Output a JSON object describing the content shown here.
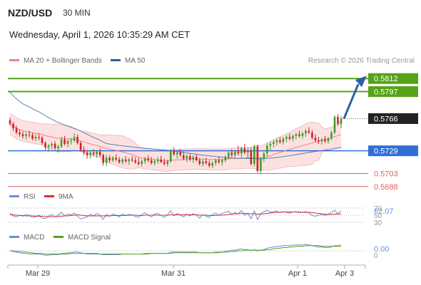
{
  "header": {
    "pair": "NZD/USD",
    "timeframe": "30 MIN",
    "datetime": "Wednesday, April 1, 2026 10:35:29 AM CET"
  },
  "legend": {
    "ma20_bb": "MA 20 + Bollinger Bands",
    "ma50": "MA 50",
    "credit": "Research © 2026 Trading Central",
    "rsi": "RSI",
    "rsi_ma": "9MA",
    "macd": "MACD",
    "macd_signal": "MACD Signal"
  },
  "colors": {
    "resistance": "#55a318",
    "pivot": "#2f6fd6",
    "support": "#e06060",
    "bullish_candle": "#3aa02a",
    "bearish_candle": "#d0202a",
    "ma20": "#f08080",
    "ma50": "#5b7fb3",
    "bollinger_fill": "#fbdcdc",
    "rsi": "#6a8fd8",
    "rsi_ma": "#d83030",
    "macd": "#6a8fd8",
    "macd_signal": "#55a318",
    "last_price_tag": "#222222",
    "forecast_arrow": "#2f5fa8"
  },
  "chart_data": [
    {
      "type": "candlestick",
      "title": "NZD/USD 30 MIN",
      "ylim": [
        0.5678,
        0.5822
      ],
      "x_ticks": [
        "Mar 29",
        "Mar 31",
        "Apr 1",
        "Apr 3"
      ],
      "last_price": 0.5766,
      "levels": [
        {
          "label": "0.5812",
          "value": 0.5812,
          "kind": "resistance"
        },
        {
          "label": "0.5797",
          "value": 0.5797,
          "kind": "resistance"
        },
        {
          "label": "0.5729",
          "value": 0.5729,
          "kind": "pivot"
        },
        {
          "label": "0.5703",
          "value": 0.5703,
          "kind": "support"
        },
        {
          "label": "0.5688",
          "value": 0.5688,
          "kind": "support"
        }
      ],
      "forecast": {
        "from": 0.5766,
        "to": 0.5812,
        "direction": "up"
      },
      "ohlc_approx": [
        [
          0.5764,
          0.5767,
          0.5758,
          0.576
        ],
        [
          0.576,
          0.5762,
          0.5752,
          0.5755
        ],
        [
          0.5755,
          0.5758,
          0.5748,
          0.575
        ],
        [
          0.575,
          0.5753,
          0.5745,
          0.5748
        ],
        [
          0.5748,
          0.5751,
          0.5743,
          0.5746
        ],
        [
          0.5746,
          0.575,
          0.5742,
          0.5748
        ],
        [
          0.5748,
          0.5752,
          0.5744,
          0.5747
        ],
        [
          0.5747,
          0.575,
          0.5741,
          0.5743
        ],
        [
          0.5743,
          0.5748,
          0.574,
          0.5745
        ],
        [
          0.5745,
          0.5749,
          0.5741,
          0.5744
        ],
        [
          0.5744,
          0.5746,
          0.5736,
          0.5738
        ],
        [
          0.5738,
          0.574,
          0.573,
          0.5733
        ],
        [
          0.5733,
          0.5737,
          0.5728,
          0.5735
        ],
        [
          0.5735,
          0.5739,
          0.5731,
          0.5737
        ],
        [
          0.5737,
          0.574,
          0.573,
          0.5732
        ],
        [
          0.5732,
          0.5736,
          0.5727,
          0.5734
        ],
        [
          0.5734,
          0.5745,
          0.5732,
          0.5742
        ],
        [
          0.5742,
          0.5746,
          0.5735,
          0.5737
        ],
        [
          0.5737,
          0.5742,
          0.5733,
          0.574
        ],
        [
          0.574,
          0.5744,
          0.5736,
          0.5741
        ],
        [
          0.5741,
          0.5749,
          0.5739,
          0.5745
        ],
        [
          0.5745,
          0.5748,
          0.5736,
          0.5738
        ],
        [
          0.5738,
          0.574,
          0.5728,
          0.573
        ],
        [
          0.573,
          0.5734,
          0.5724,
          0.5727
        ],
        [
          0.5727,
          0.573,
          0.572,
          0.5724
        ],
        [
          0.5724,
          0.5729,
          0.572,
          0.5727
        ],
        [
          0.5727,
          0.5731,
          0.5723,
          0.5725
        ],
        [
          0.5725,
          0.573,
          0.5721,
          0.5728
        ],
        [
          0.5728,
          0.5732,
          0.5722,
          0.5724
        ],
        [
          0.5724,
          0.5726,
          0.5712,
          0.5715
        ],
        [
          0.5715,
          0.5724,
          0.5711,
          0.5721
        ],
        [
          0.5721,
          0.5724,
          0.5715,
          0.5718
        ],
        [
          0.5718,
          0.5723,
          0.5716,
          0.5721
        ],
        [
          0.5721,
          0.5725,
          0.5717,
          0.5719
        ],
        [
          0.5719,
          0.5722,
          0.5714,
          0.5716
        ],
        [
          0.5716,
          0.5721,
          0.5713,
          0.5719
        ],
        [
          0.5719,
          0.5723,
          0.5715,
          0.5717
        ],
        [
          0.5717,
          0.5721,
          0.5713,
          0.5719
        ],
        [
          0.5719,
          0.5723,
          0.5716,
          0.5718
        ],
        [
          0.5718,
          0.5722,
          0.5714,
          0.5716
        ],
        [
          0.5716,
          0.5721,
          0.5712,
          0.5714
        ],
        [
          0.5714,
          0.5719,
          0.5711,
          0.5717
        ],
        [
          0.5717,
          0.5722,
          0.5714,
          0.572
        ],
        [
          0.572,
          0.5724,
          0.5716,
          0.5718
        ],
        [
          0.5718,
          0.5722,
          0.5713,
          0.5715
        ],
        [
          0.5715,
          0.5719,
          0.5712,
          0.5717
        ],
        [
          0.5717,
          0.5722,
          0.5714,
          0.5719
        ],
        [
          0.5719,
          0.5723,
          0.5715,
          0.5716
        ],
        [
          0.5716,
          0.572,
          0.5712,
          0.5714
        ],
        [
          0.5714,
          0.5719,
          0.5711,
          0.5717
        ],
        [
          0.5717,
          0.5731,
          0.5715,
          0.5729
        ],
        [
          0.5729,
          0.5733,
          0.5723,
          0.5725
        ],
        [
          0.5725,
          0.5729,
          0.572,
          0.5727
        ],
        [
          0.5727,
          0.5731,
          0.5722,
          0.5724
        ],
        [
          0.5724,
          0.5728,
          0.5718,
          0.572
        ],
        [
          0.572,
          0.5725,
          0.5716,
          0.5723
        ],
        [
          0.5723,
          0.5726,
          0.5717,
          0.5719
        ],
        [
          0.5719,
          0.5724,
          0.5715,
          0.5722
        ],
        [
          0.5722,
          0.5725,
          0.5717,
          0.5718
        ],
        [
          0.5718,
          0.5721,
          0.5712,
          0.5714
        ],
        [
          0.5714,
          0.5719,
          0.5711,
          0.5717
        ],
        [
          0.5717,
          0.5721,
          0.5713,
          0.5715
        ],
        [
          0.5715,
          0.5718,
          0.571,
          0.5712
        ],
        [
          0.5712,
          0.5717,
          0.5709,
          0.5715
        ],
        [
          0.5715,
          0.572,
          0.5712,
          0.5718
        ],
        [
          0.5718,
          0.5722,
          0.5714,
          0.5716
        ],
        [
          0.5716,
          0.572,
          0.5712,
          0.5718
        ],
        [
          0.5718,
          0.5724,
          0.5716,
          0.5722
        ],
        [
          0.5722,
          0.5729,
          0.5719,
          0.5727
        ],
        [
          0.5727,
          0.5731,
          0.5722,
          0.5724
        ],
        [
          0.5724,
          0.573,
          0.5721,
          0.5728
        ],
        [
          0.5728,
          0.5735,
          0.5724,
          0.5726
        ],
        [
          0.5726,
          0.5734,
          0.5721,
          0.5732
        ],
        [
          0.5732,
          0.5737,
          0.5725,
          0.5727
        ],
        [
          0.5727,
          0.5733,
          0.572,
          0.5729
        ],
        [
          0.5729,
          0.5733,
          0.5712,
          0.5714
        ],
        [
          0.5714,
          0.5736,
          0.5711,
          0.5734
        ],
        [
          0.5734,
          0.5736,
          0.5704,
          0.5706
        ],
        [
          0.5706,
          0.5722,
          0.5703,
          0.572
        ],
        [
          0.572,
          0.5728,
          0.5716,
          0.5726
        ],
        [
          0.5726,
          0.5738,
          0.5722,
          0.5735
        ],
        [
          0.5735,
          0.574,
          0.5729,
          0.5737
        ],
        [
          0.5737,
          0.5742,
          0.5733,
          0.5739
        ],
        [
          0.5739,
          0.5743,
          0.5735,
          0.5741
        ],
        [
          0.5741,
          0.5745,
          0.5737,
          0.5739
        ],
        [
          0.5739,
          0.5745,
          0.5736,
          0.5743
        ],
        [
          0.5743,
          0.5747,
          0.5739,
          0.5745
        ],
        [
          0.5745,
          0.5749,
          0.5741,
          0.5743
        ],
        [
          0.5743,
          0.5748,
          0.574,
          0.5746
        ],
        [
          0.5746,
          0.575,
          0.5742,
          0.5748
        ],
        [
          0.5748,
          0.5752,
          0.5744,
          0.5746
        ],
        [
          0.5746,
          0.5751,
          0.5743,
          0.5749
        ],
        [
          0.5749,
          0.5754,
          0.5745,
          0.5752
        ],
        [
          0.5752,
          0.5756,
          0.5748,
          0.575
        ],
        [
          0.575,
          0.5753,
          0.5742,
          0.5744
        ],
        [
          0.5744,
          0.5748,
          0.5739,
          0.5741
        ],
        [
          0.5741,
          0.5745,
          0.5737,
          0.574
        ],
        [
          0.574,
          0.5744,
          0.5736,
          0.5742
        ],
        [
          0.5742,
          0.5746,
          0.5738,
          0.574
        ],
        [
          0.574,
          0.5745,
          0.5737,
          0.5743
        ],
        [
          0.5743,
          0.5752,
          0.5741,
          0.575
        ],
        [
          0.575,
          0.577,
          0.5748,
          0.5768
        ],
        [
          0.5768,
          0.5771,
          0.5758,
          0.576
        ],
        [
          0.576,
          0.5769,
          0.5755,
          0.5766
        ]
      ]
    },
    {
      "type": "line",
      "title": "RSI",
      "ylim": [
        30,
        70
      ],
      "tick_labels": [
        "70",
        "50",
        "30"
      ],
      "value_label": "62.07",
      "series": [
        {
          "name": "RSI",
          "values": [
            55,
            48,
            45,
            50,
            47,
            52,
            49,
            44,
            46,
            50,
            42,
            40,
            47,
            52,
            45,
            50,
            58,
            48,
            53,
            51,
            56,
            47,
            40,
            42,
            46,
            52,
            48,
            55,
            50,
            38,
            52,
            47,
            53,
            50,
            45,
            54,
            49,
            52,
            51,
            46,
            44,
            52,
            57,
            50,
            45,
            53,
            55,
            49,
            44,
            51,
            62,
            48,
            55,
            50,
            45,
            53,
            48,
            54,
            50,
            42,
            52,
            47,
            44,
            52,
            56,
            50,
            55,
            58,
            61,
            52,
            57,
            54,
            63,
            50,
            55,
            40,
            62,
            38,
            55,
            60,
            64,
            58,
            60,
            61,
            57,
            60,
            58,
            56,
            59,
            60,
            57,
            58,
            60,
            56,
            49,
            47,
            50,
            52,
            49,
            53,
            58,
            64,
            54,
            62
          ]
        },
        {
          "name": "9MA",
          "values": [
            52,
            51,
            50,
            49,
            49,
            48,
            48,
            48,
            47,
            47,
            47,
            46,
            46,
            46,
            46,
            46,
            47,
            48,
            48,
            49,
            50,
            51,
            50,
            49,
            48,
            48,
            48,
            48,
            48,
            48,
            48,
            48,
            49,
            49,
            49,
            49,
            49,
            50,
            50,
            50,
            49,
            49,
            50,
            50,
            50,
            50,
            50,
            50,
            50,
            50,
            51,
            51,
            51,
            51,
            51,
            51,
            51,
            51,
            51,
            50,
            50,
            50,
            49,
            49,
            49,
            50,
            50,
            51,
            52,
            53,
            54,
            54,
            55,
            55,
            55,
            54,
            54,
            53,
            53,
            54,
            55,
            56,
            57,
            58,
            58,
            59,
            59,
            59,
            59,
            59,
            59,
            58,
            58,
            58,
            57,
            56,
            55,
            54,
            53,
            52,
            52,
            53,
            53,
            54
          ]
        }
      ]
    },
    {
      "type": "line",
      "title": "MACD",
      "value_label": "0.00",
      "zero_label": "0",
      "series": [
        {
          "name": "MACD",
          "values": [
            0.0,
            -0.0001,
            -0.0002,
            -0.0003,
            -0.0004,
            -0.0004,
            -0.0005,
            -0.0005,
            -0.0005,
            -0.0005,
            -0.0006,
            -0.0007,
            -0.0007,
            -0.0006,
            -0.0006,
            -0.0006,
            -0.0004,
            -0.0004,
            -0.0003,
            -0.0003,
            -0.0002,
            -0.0002,
            -0.0003,
            -0.0004,
            -0.0005,
            -0.0005,
            -0.0005,
            -0.0005,
            -0.0005,
            -0.0006,
            -0.0006,
            -0.0006,
            -0.0006,
            -0.0006,
            -0.0006,
            -0.0005,
            -0.0005,
            -0.0005,
            -0.0005,
            -0.0005,
            -0.0005,
            -0.0005,
            -0.0004,
            -0.0004,
            -0.0004,
            -0.0004,
            -0.0004,
            -0.0004,
            -0.0004,
            -0.0004,
            -0.0002,
            -0.0002,
            -0.0002,
            -0.0002,
            -0.0002,
            -0.0002,
            -0.0002,
            -0.0002,
            -0.0002,
            -0.0003,
            -0.0003,
            -0.0003,
            -0.0003,
            -0.0003,
            -0.0002,
            -0.0002,
            -0.0002,
            -0.0001,
            0.0,
            0.0001,
            0.0001,
            0.0002,
            0.0003,
            0.0002,
            0.0002,
            0.0,
            0.0002,
            0.0,
            0.0001,
            0.0002,
            0.0004,
            0.0005,
            0.0006,
            0.0007,
            0.0007,
            0.0008,
            0.0008,
            0.0008,
            0.0009,
            0.0009,
            0.0009,
            0.0009,
            0.001,
            0.0009,
            0.0008,
            0.0007,
            0.0006,
            0.0006,
            0.0005,
            0.0005,
            0.0006,
            0.0008,
            0.0008,
            0.0009
          ]
        },
        {
          "name": "MACD Signal",
          "values": [
            0.0,
            0.0,
            -0.0001,
            -0.0001,
            -0.0002,
            -0.0002,
            -0.0003,
            -0.0003,
            -0.0004,
            -0.0004,
            -0.0004,
            -0.0005,
            -0.0005,
            -0.0005,
            -0.0005,
            -0.0005,
            -0.0005,
            -0.0005,
            -0.0005,
            -0.0004,
            -0.0004,
            -0.0004,
            -0.0004,
            -0.0004,
            -0.0004,
            -0.0004,
            -0.0004,
            -0.0004,
            -0.0005,
            -0.0005,
            -0.0005,
            -0.0005,
            -0.0005,
            -0.0005,
            -0.0005,
            -0.0005,
            -0.0005,
            -0.0005,
            -0.0005,
            -0.0005,
            -0.0005,
            -0.0005,
            -0.0005,
            -0.0005,
            -0.0004,
            -0.0004,
            -0.0004,
            -0.0004,
            -0.0004,
            -0.0004,
            -0.0004,
            -0.0003,
            -0.0003,
            -0.0003,
            -0.0003,
            -0.0003,
            -0.0003,
            -0.0003,
            -0.0003,
            -0.0003,
            -0.0003,
            -0.0003,
            -0.0003,
            -0.0003,
            -0.0003,
            -0.0003,
            -0.0002,
            -0.0002,
            -0.0002,
            -0.0001,
            -0.0001,
            0.0,
            0.0,
            0.0001,
            0.0001,
            0.0001,
            0.0001,
            0.0001,
            0.0001,
            0.0001,
            0.0002,
            0.0002,
            0.0003,
            0.0004,
            0.0004,
            0.0005,
            0.0005,
            0.0006,
            0.0006,
            0.0007,
            0.0007,
            0.0007,
            0.0008,
            0.0008,
            0.0008,
            0.0008,
            0.0008,
            0.0007,
            0.0007,
            0.0007,
            0.0007,
            0.0007,
            0.0007,
            0.0007
          ]
        }
      ]
    }
  ]
}
